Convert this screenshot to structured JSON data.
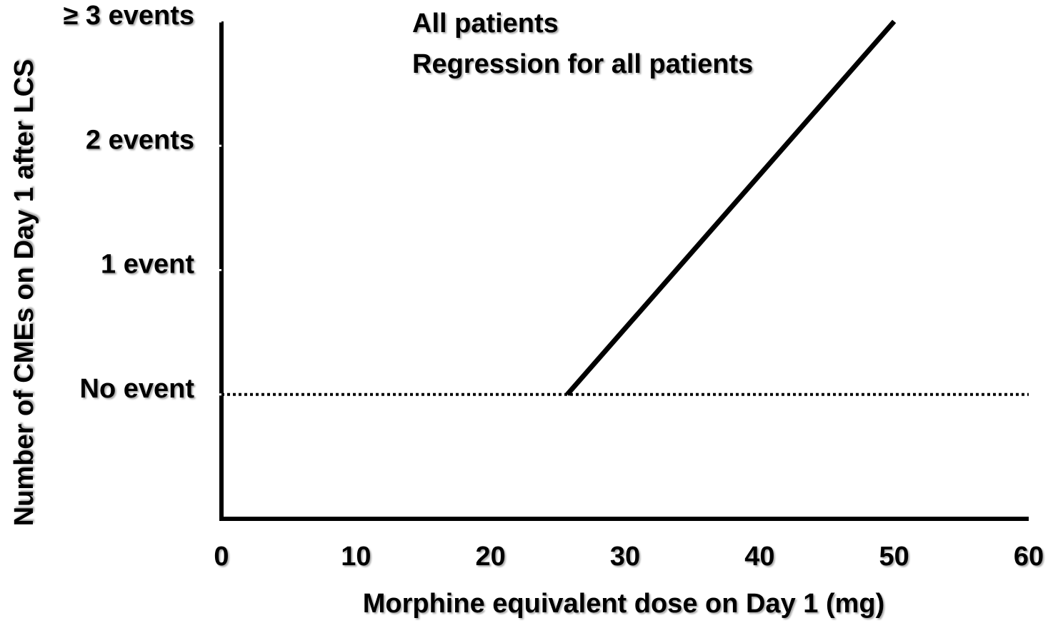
{
  "chart_data": {
    "type": "line",
    "x_label": "Morphine equivalent dose on Day 1 (mg)",
    "y_label": "Number of CMEs on Day 1 after LCS",
    "xlim": [
      0,
      60
    ],
    "xticks": [
      0,
      10,
      20,
      30,
      40,
      50,
      60
    ],
    "ylim": [
      -1,
      3
    ],
    "yticks": [
      {
        "value": 0,
        "label": "No event"
      },
      {
        "value": 1,
        "label": "1 event"
      },
      {
        "value": 2,
        "label": "2 events"
      },
      {
        "value": 3,
        "label": "≥ 3 events"
      }
    ],
    "reference_line": {
      "y": 0,
      "style": "dotted",
      "color": "#000000"
    },
    "series": [
      {
        "name": "All patients",
        "color": "#ffffff",
        "x": [],
        "values": []
      },
      {
        "name": "Regression for all patients",
        "color": "#000000",
        "x": [
          25.7,
          50
        ],
        "values": [
          0,
          3
        ]
      }
    ],
    "grid": false
  }
}
